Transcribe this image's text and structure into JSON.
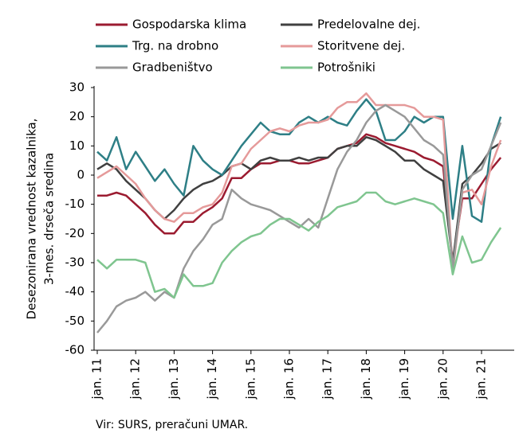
{
  "chart_data": {
    "type": "line",
    "ylabel": [
      "Desezonirana vrednost kazalnika,",
      "3-mes. drseča sredina"
    ],
    "source": "Vir: SURS, preračuni UMAR.",
    "categories": [
      "jan. 11",
      null,
      null,
      null,
      "jan. 12",
      null,
      null,
      null,
      "jan. 13",
      null,
      null,
      null,
      "jan. 14",
      null,
      null,
      null,
      "jan. 15",
      null,
      null,
      null,
      "jan. 16",
      null,
      null,
      null,
      "jan. 17",
      null,
      null,
      null,
      "jan. 18",
      null,
      null,
      null,
      "jan. 19",
      null,
      null,
      null,
      "jan. 20",
      null,
      null,
      null,
      "jan. 21",
      null,
      null
    ],
    "ylim": [
      -60,
      30
    ],
    "yticks": [
      -60,
      -50,
      -40,
      -30,
      -20,
      -10,
      0,
      10,
      20,
      30
    ],
    "grid": false,
    "series": [
      {
        "name": "Gospodarska klima",
        "color": "#9b1b30",
        "values": [
          -7,
          -7,
          -6,
          -7,
          -10,
          -13,
          -17,
          -20,
          -20,
          -16,
          -16,
          -13,
          -11,
          -8,
          -1,
          -1,
          2,
          4,
          4,
          5,
          5,
          4,
          4,
          5,
          6,
          9,
          10,
          11,
          14,
          13,
          11,
          10,
          9,
          8,
          6,
          5,
          3,
          -30,
          -8,
          -8,
          -3,
          2,
          6
        ]
      },
      {
        "name": "Predelovalne dej.",
        "color": "#404040",
        "values": [
          2,
          4,
          2,
          -2,
          -5,
          -8,
          -12,
          -15,
          -12,
          -8,
          -5,
          -3,
          -2,
          0,
          3,
          4,
          2,
          5,
          6,
          5,
          5,
          6,
          5,
          6,
          6,
          9,
          10,
          10,
          13,
          12,
          10,
          8,
          5,
          5,
          2,
          0,
          -2,
          -30,
          -3,
          0,
          4,
          9,
          11
        ]
      },
      {
        "name": "Trg. na drobno",
        "color": "#2e7f86",
        "values": [
          8,
          5,
          13,
          2,
          8,
          3,
          -2,
          2,
          -3,
          -7,
          10,
          5,
          2,
          0,
          5,
          10,
          14,
          18,
          15,
          14,
          14,
          18,
          20,
          18,
          20,
          18,
          17,
          22,
          26,
          22,
          12,
          12,
          15,
          20,
          18,
          20,
          20,
          -15,
          10,
          -14,
          -16,
          10,
          20
        ]
      },
      {
        "name": "Storitvene dej.",
        "color": "#e59a9a",
        "values": [
          -1,
          1,
          3,
          0,
          -3,
          -8,
          -12,
          -15,
          -16,
          -13,
          -13,
          -11,
          -10,
          -6,
          3,
          4,
          9,
          12,
          15,
          16,
          15,
          17,
          18,
          18,
          19,
          23,
          25,
          25,
          28,
          24,
          24,
          24,
          24,
          23,
          20,
          20,
          19,
          -33,
          -6,
          -5,
          -10,
          3,
          12
        ]
      },
      {
        "name": "Gradbeništvo",
        "color": "#999999",
        "values": [
          -54,
          -50,
          -45,
          -43,
          -42,
          -40,
          -43,
          -40,
          -42,
          -32,
          -26,
          -22,
          -17,
          -15,
          -5,
          -8,
          -10,
          -11,
          -12,
          -14,
          -16,
          -18,
          -15,
          -18,
          -8,
          2,
          8,
          12,
          18,
          22,
          24,
          22,
          20,
          16,
          12,
          10,
          7,
          -32,
          -5,
          0,
          2,
          10,
          18
        ]
      },
      {
        "name": "Potrošniki",
        "color": "#7fc58f",
        "values": [
          -29,
          -32,
          -29,
          -29,
          -29,
          -30,
          -40,
          -39,
          -42,
          -34,
          -38,
          -38,
          -37,
          -30,
          -26,
          -23,
          -21,
          -20,
          -17,
          -15,
          -15,
          -17,
          -19,
          -16,
          -14,
          -11,
          -10,
          -9,
          -6,
          -6,
          -9,
          -10,
          -9,
          -8,
          -9,
          -10,
          -13,
          -34,
          -21,
          -30,
          -29,
          -23,
          -18
        ]
      }
    ]
  }
}
